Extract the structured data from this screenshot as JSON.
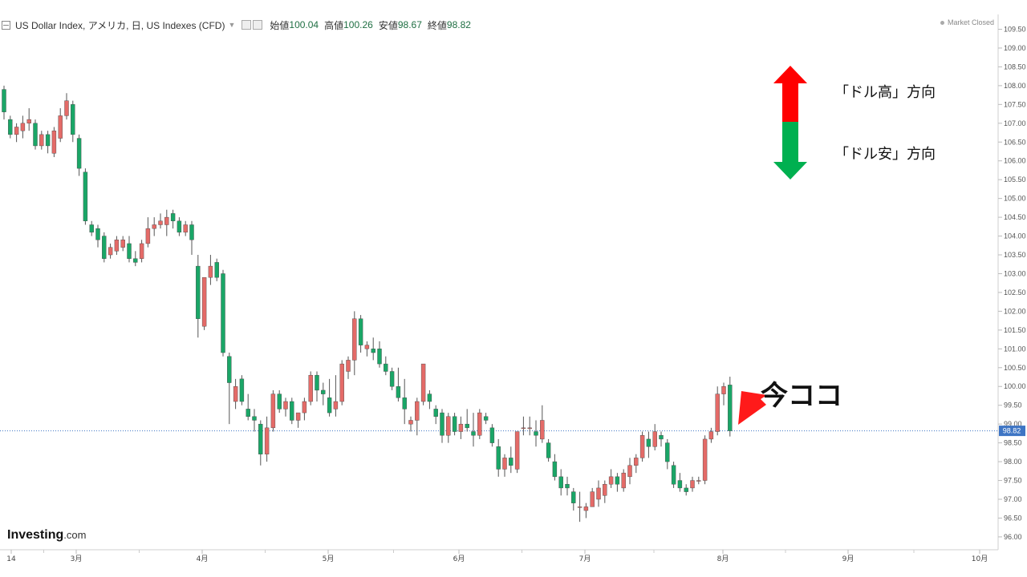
{
  "header": {
    "symbol": "US Dollar Index, アメリカ, 日, US Indexes (CFD)",
    "open_label": "始値",
    "open_value": "100.04",
    "high_label": "高値",
    "high_value": "100.26",
    "low_label": "安値",
    "low_value": "98.67",
    "close_label": "終値",
    "close_value": "98.82"
  },
  "market_status": "Market Closed",
  "annotations": {
    "up_text": "「ドル高」方向",
    "down_text": "「ドル安」方向",
    "here_text": "今ココ"
  },
  "logo": {
    "main": "Investing",
    "suffix": ".com"
  },
  "colors": {
    "up": "#e46b68",
    "down": "#1aa667",
    "wick": "#555555",
    "price_tag": "#3e75c4",
    "arrow_red": "#ff0000",
    "arrow_green": "#00b050"
  },
  "chart_data": {
    "type": "candlestick",
    "current_price": "98.82",
    "ylim": [
      95.85,
      109.75
    ],
    "y_ticks": [
      "96.00",
      "96.50",
      "97.00",
      "97.50",
      "98.00",
      "98.50",
      "99.00",
      "99.50",
      "100.00",
      "100.50",
      "101.00",
      "101.50",
      "102.00",
      "102.50",
      "103.00",
      "103.50",
      "104.00",
      "104.50",
      "105.00",
      "105.50",
      "106.00",
      "106.50",
      "107.00",
      "107.50",
      "108.00",
      "108.50",
      "109.00",
      "109.50"
    ],
    "x_ticks": [
      "14",
      "3月",
      "4月",
      "5月",
      "6月",
      "7月",
      "8月",
      "9月",
      "10月"
    ],
    "ohlc": [
      [
        107.9,
        108.0,
        107.1,
        107.3
      ],
      [
        107.1,
        107.2,
        106.6,
        106.7
      ],
      [
        106.7,
        107.0,
        106.5,
        106.9
      ],
      [
        106.8,
        107.2,
        106.6,
        107.0
      ],
      [
        107.0,
        107.4,
        106.8,
        107.1
      ],
      [
        107.0,
        107.1,
        106.3,
        106.4
      ],
      [
        106.4,
        106.8,
        106.3,
        106.7
      ],
      [
        106.7,
        106.8,
        106.2,
        106.4
      ],
      [
        106.2,
        106.9,
        106.1,
        106.8
      ],
      [
        106.6,
        107.4,
        106.5,
        107.2
      ],
      [
        107.2,
        107.8,
        107.1,
        107.6
      ],
      [
        107.5,
        107.6,
        106.5,
        106.7
      ],
      [
        106.6,
        106.7,
        105.6,
        105.8
      ],
      [
        105.7,
        105.8,
        104.3,
        104.4
      ],
      [
        104.3,
        104.4,
        104.0,
        104.1
      ],
      [
        104.2,
        104.3,
        103.7,
        103.9
      ],
      [
        104.0,
        104.1,
        103.3,
        103.4
      ],
      [
        103.5,
        103.8,
        103.4,
        103.7
      ],
      [
        103.6,
        104.0,
        103.5,
        103.9
      ],
      [
        103.7,
        104.0,
        103.6,
        103.9
      ],
      [
        103.8,
        104.0,
        103.3,
        103.4
      ],
      [
        103.4,
        103.6,
        103.2,
        103.3
      ],
      [
        103.4,
        103.9,
        103.3,
        103.8
      ],
      [
        103.8,
        104.5,
        103.7,
        104.2
      ],
      [
        104.2,
        104.5,
        104.0,
        104.3
      ],
      [
        104.3,
        104.6,
        104.2,
        104.4
      ],
      [
        104.3,
        104.7,
        104.0,
        104.5
      ],
      [
        104.6,
        104.7,
        104.2,
        104.4
      ],
      [
        104.4,
        104.5,
        104.0,
        104.1
      ],
      [
        104.1,
        104.4,
        104.0,
        104.3
      ],
      [
        104.3,
        104.4,
        103.5,
        103.9
      ],
      [
        103.2,
        103.5,
        101.3,
        101.8
      ],
      [
        101.6,
        102.9,
        101.5,
        102.9
      ],
      [
        102.9,
        103.5,
        102.7,
        103.2
      ],
      [
        103.3,
        103.4,
        102.8,
        102.9
      ],
      [
        103.0,
        103.1,
        100.8,
        100.9
      ],
      [
        100.8,
        100.9,
        99.0,
        100.1
      ],
      [
        99.6,
        100.2,
        99.4,
        100.0
      ],
      [
        100.2,
        100.3,
        99.5,
        99.6
      ],
      [
        99.4,
        99.8,
        99.1,
        99.2
      ],
      [
        99.2,
        99.4,
        98.8,
        99.1
      ],
      [
        99.0,
        99.1,
        97.9,
        98.2
      ],
      [
        98.2,
        99.2,
        98.0,
        98.9
      ],
      [
        98.9,
        99.9,
        98.8,
        99.8
      ],
      [
        99.8,
        99.9,
        99.3,
        99.4
      ],
      [
        99.4,
        99.7,
        99.2,
        99.6
      ],
      [
        99.6,
        99.7,
        99.0,
        99.1
      ],
      [
        99.1,
        99.3,
        98.9,
        99.3
      ],
      [
        99.3,
        99.7,
        99.1,
        99.6
      ],
      [
        99.6,
        100.4,
        99.5,
        100.3
      ],
      [
        100.3,
        100.4,
        99.6,
        99.9
      ],
      [
        99.9,
        100.1,
        99.5,
        99.8
      ],
      [
        99.7,
        100.2,
        99.2,
        99.3
      ],
      [
        99.4,
        100.3,
        99.2,
        99.6
      ],
      [
        99.6,
        100.7,
        99.5,
        100.6
      ],
      [
        100.4,
        100.8,
        100.2,
        100.7
      ],
      [
        100.7,
        102.0,
        100.3,
        101.8
      ],
      [
        101.8,
        101.9,
        100.9,
        101.1
      ],
      [
        101.0,
        101.2,
        100.8,
        101.1
      ],
      [
        101.0,
        101.3,
        100.7,
        100.9
      ],
      [
        101.0,
        101.2,
        100.5,
        100.6
      ],
      [
        100.6,
        100.8,
        100.3,
        100.4
      ],
      [
        100.4,
        100.5,
        99.9,
        100.0
      ],
      [
        100.0,
        100.5,
        99.6,
        99.7
      ],
      [
        99.7,
        100.2,
        99.0,
        99.4
      ],
      [
        99.0,
        99.2,
        98.8,
        99.1
      ],
      [
        99.1,
        99.7,
        98.7,
        99.6
      ],
      [
        99.6,
        100.6,
        99.5,
        100.6
      ],
      [
        99.8,
        99.9,
        99.4,
        99.6
      ],
      [
        99.4,
        99.5,
        99.0,
        99.2
      ],
      [
        99.3,
        99.4,
        98.5,
        98.7
      ],
      [
        98.7,
        99.3,
        98.5,
        99.2
      ],
      [
        99.2,
        99.3,
        98.7,
        98.8
      ],
      [
        98.8,
        99.2,
        98.6,
        99.0
      ],
      [
        99.0,
        99.4,
        98.8,
        98.9
      ],
      [
        98.8,
        99.3,
        98.4,
        98.7
      ],
      [
        98.7,
        99.4,
        98.6,
        99.3
      ],
      [
        99.2,
        99.3,
        99.0,
        99.1
      ],
      [
        98.9,
        99.0,
        98.4,
        98.5
      ],
      [
        98.4,
        98.6,
        97.6,
        97.8
      ],
      [
        97.8,
        98.2,
        97.6,
        98.1
      ],
      [
        98.1,
        98.4,
        97.7,
        97.9
      ],
      [
        97.8,
        98.8,
        97.7,
        98.8
      ],
      [
        98.9,
        99.2,
        98.7,
        98.9
      ],
      [
        98.9,
        99.2,
        98.7,
        98.9
      ],
      [
        98.8,
        99.1,
        98.4,
        98.7
      ],
      [
        98.6,
        99.5,
        98.5,
        99.1
      ],
      [
        98.5,
        98.6,
        98.0,
        98.1
      ],
      [
        98.0,
        98.2,
        97.5,
        97.6
      ],
      [
        97.6,
        97.8,
        97.1,
        97.3
      ],
      [
        97.4,
        97.6,
        97.1,
        97.3
      ],
      [
        97.2,
        97.3,
        96.7,
        96.9
      ],
      [
        96.8,
        97.2,
        96.4,
        96.8
      ],
      [
        96.7,
        96.9,
        96.5,
        96.8
      ],
      [
        96.8,
        97.3,
        96.8,
        97.2
      ],
      [
        97.0,
        97.5,
        96.8,
        97.3
      ],
      [
        97.1,
        97.5,
        96.9,
        97.4
      ],
      [
        97.4,
        97.8,
        97.3,
        97.6
      ],
      [
        97.6,
        97.7,
        97.2,
        97.4
      ],
      [
        97.3,
        97.8,
        97.2,
        97.7
      ],
      [
        97.6,
        98.1,
        97.4,
        97.9
      ],
      [
        97.9,
        98.2,
        97.7,
        98.1
      ],
      [
        98.1,
        98.8,
        98.0,
        98.7
      ],
      [
        98.6,
        98.8,
        98.1,
        98.4
      ],
      [
        98.4,
        99.0,
        98.3,
        98.8
      ],
      [
        98.7,
        98.8,
        98.4,
        98.6
      ],
      [
        98.5,
        98.6,
        97.8,
        98.0
      ],
      [
        97.9,
        98.0,
        97.3,
        97.4
      ],
      [
        97.5,
        97.7,
        97.2,
        97.3
      ],
      [
        97.3,
        97.4,
        97.1,
        97.2
      ],
      [
        97.3,
        97.6,
        97.2,
        97.5
      ],
      [
        97.5,
        97.6,
        97.4,
        97.5
      ],
      [
        97.5,
        98.7,
        97.4,
        98.6
      ],
      [
        98.6,
        98.9,
        98.5,
        98.8
      ],
      [
        98.8,
        100.0,
        98.7,
        99.8
      ],
      [
        99.8,
        100.1,
        99.5,
        100.0
      ],
      [
        100.04,
        100.26,
        98.67,
        98.82
      ]
    ]
  }
}
